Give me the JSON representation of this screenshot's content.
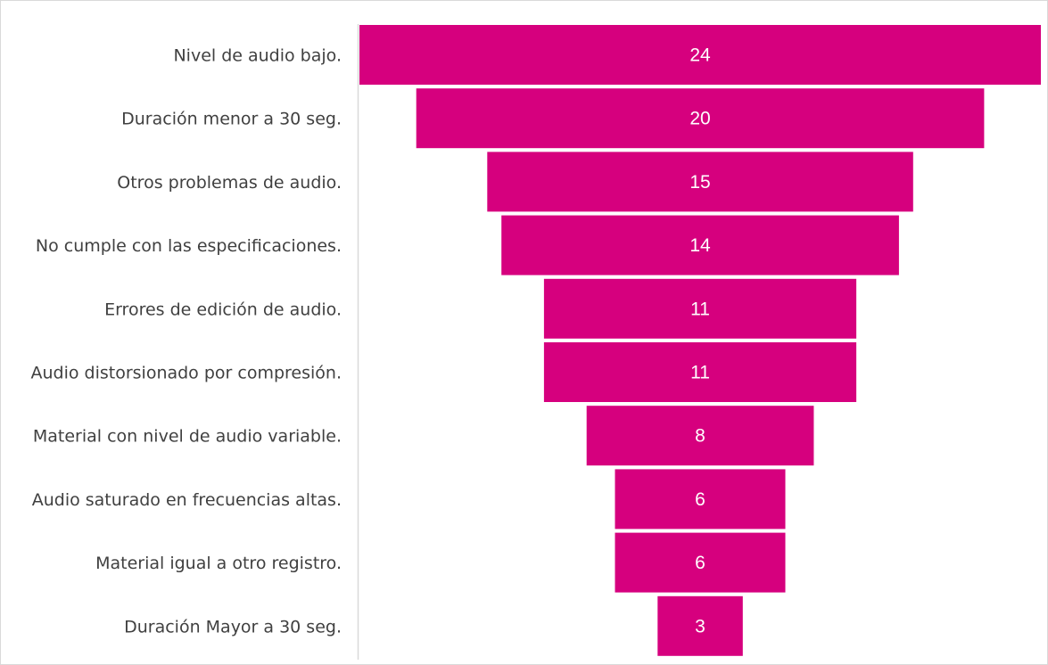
{
  "colors": {
    "bar": "#d6007e",
    "axis": "#d9d9d9",
    "text": "#404040",
    "value_text": "#ffffff",
    "border": "#d9d9d9"
  },
  "chart_data": {
    "type": "funnel",
    "title": "",
    "categories": [
      "Nivel de audio bajo.",
      "Duración menor a 30 seg.",
      "Otros problemas de audio.",
      "No cumple con las especificaciones.",
      "Errores de edición de audio.",
      "Audio distorsionado por compresión.",
      "Material con nivel de audio variable.",
      "Audio saturado en frecuencias altas.",
      "Material igual a otro registro.",
      "Duración Mayor a 30 seg."
    ],
    "values": [
      24,
      20,
      15,
      14,
      11,
      11,
      8,
      6,
      6,
      3
    ],
    "value_labels": [
      "24",
      "20",
      "15",
      "14",
      "11",
      "11",
      "8",
      "6",
      "6",
      "3"
    ],
    "max": 24,
    "data_labels": "center",
    "legend": "none",
    "grid": false
  }
}
